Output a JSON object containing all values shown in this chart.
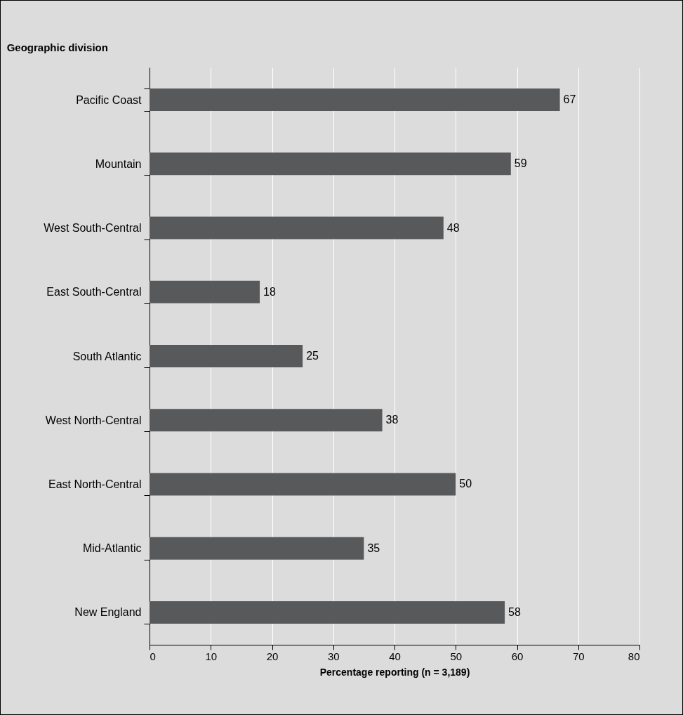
{
  "chart_data": {
    "type": "bar",
    "orientation": "horizontal",
    "title": "Geographic division",
    "xlabel": "Percentage reporting (n = 3,189)",
    "categories": [
      "Pacific Coast",
      "Mountain",
      "West South-Central",
      "East South-Central",
      "South Atlantic",
      "West North-Central",
      "East North-Central",
      "Mid-Atlantic",
      "New England"
    ],
    "values": [
      67,
      59,
      48,
      18,
      25,
      38,
      50,
      35,
      58
    ],
    "color": "#58595b",
    "xlim": [
      0,
      80
    ],
    "xticks": [
      0,
      10,
      20,
      30,
      40,
      50,
      60,
      70,
      80
    ],
    "grid": "x",
    "data_labels": true
  }
}
